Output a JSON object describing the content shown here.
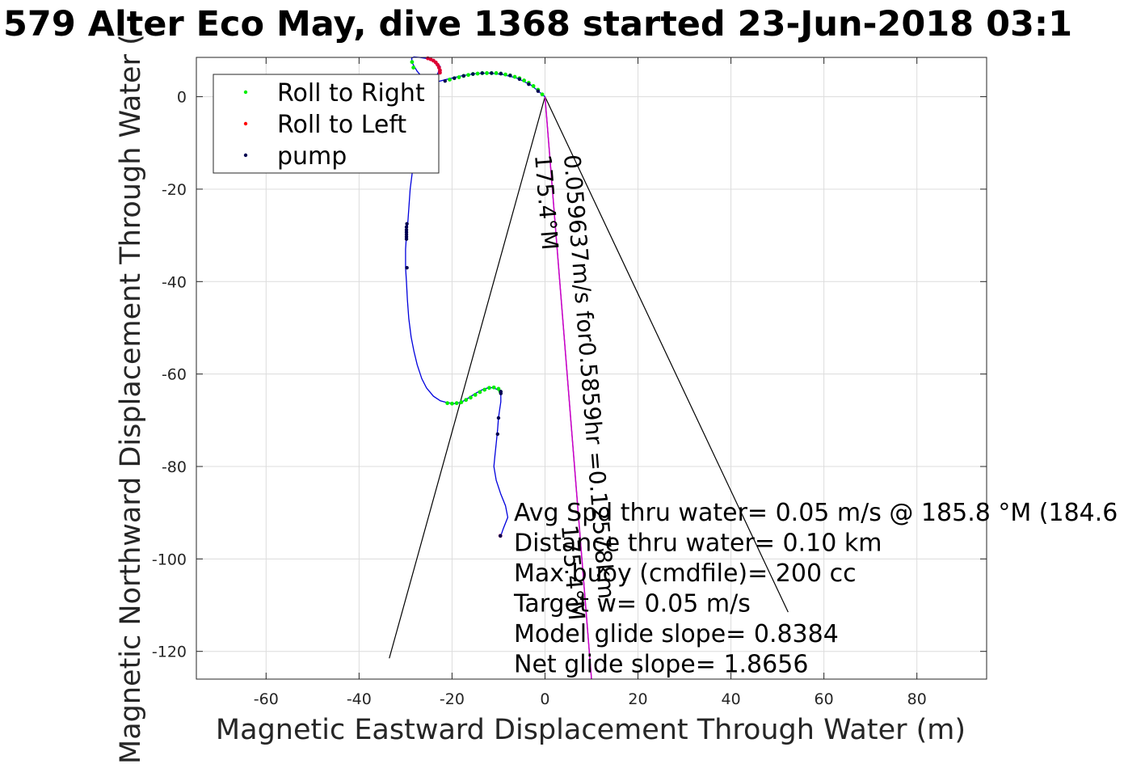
{
  "chart_data": {
    "type": "line",
    "title": "579 Alter Eco May, dive 1368 started 23-Jun-2018 03:1",
    "xlabel": "Magnetic Eastward Displacement Through Water (m)",
    "ylabel": "Magnetic Northward Displacement Through Water (",
    "xlim": [
      -75,
      95
    ],
    "ylim": [
      -126,
      8.5
    ],
    "xticks": [
      -60,
      -40,
      -20,
      0,
      20,
      40,
      60,
      80
    ],
    "yticks": [
      0,
      -20,
      -40,
      -60,
      -80,
      -100,
      -120
    ],
    "grid": true,
    "legend": {
      "position": "top-left",
      "entries": [
        {
          "label": "Roll to Right",
          "color": "#00ee00"
        },
        {
          "label": "Roll to Left",
          "color": "#ff0000"
        },
        {
          "label": "pump",
          "color": "#000050"
        }
      ]
    },
    "series": [
      {
        "name": "track",
        "color": "#0000dd",
        "x": [
          0,
          -3,
          -6,
          -9,
          -12,
          -15,
          -18,
          -21,
          -24,
          -26,
          -27.5,
          -28.5,
          -28.7,
          -28.2,
          -27,
          -25,
          -23.5,
          -22.5,
          -23,
          -24,
          -25.5,
          -27,
          -28,
          -29,
          -29.5,
          -29.8,
          -30,
          -30,
          -29.8,
          -29.6,
          -29.3,
          -28.8,
          -28.2,
          -27.5,
          -26.5,
          -25.5,
          -24,
          -22.5,
          -21,
          -19.5,
          -18,
          -16.5,
          -15,
          -13.5,
          -12,
          -11,
          -10,
          -9.5,
          -9.5,
          -9.8,
          -10,
          -10.2,
          -10.5,
          -10.8,
          -11,
          -10.5,
          -9.5,
          -8.5,
          -8,
          -9,
          -9.5
        ],
        "y": [
          0,
          2.5,
          4,
          4.8,
          5.1,
          5,
          4.5,
          3.8,
          3,
          3.8,
          5.5,
          7.2,
          8.3,
          8.6,
          8.5,
          8.2,
          7.5,
          6.5,
          5.2,
          3.2,
          0,
          -5,
          -12,
          -20,
          -27,
          -30,
          -33,
          -37,
          -40,
          -44,
          -48,
          -52,
          -55,
          -58,
          -61,
          -63,
          -64.8,
          -65.8,
          -66.2,
          -66.4,
          -66.1,
          -65.2,
          -64.2,
          -63.4,
          -62.9,
          -63,
          -63.5,
          -64.5,
          -66,
          -68,
          -69.5,
          -72,
          -75,
          -78,
          -80,
          -83,
          -86,
          -88.5,
          -91,
          -93.5,
          -95
        ]
      },
      {
        "name": "Roll to Right",
        "color": "#00ee00",
        "x": [
          -0.6,
          -1.5,
          -2.5,
          -3.5,
          -4.5,
          -5.5,
          -6.5,
          -7.5,
          -8.5,
          -9.5,
          -10.5,
          -11.5,
          -12.5,
          -13.5,
          -14.5,
          -15.5,
          -16.5,
          -17.5,
          -18.5,
          -19.5,
          -20.5,
          -28.3,
          -28.6,
          -21,
          -20,
          -19,
          -18,
          -17,
          -16,
          -15,
          -14,
          -13,
          -12,
          -11,
          -10,
          -9.6
        ],
        "y": [
          0.5,
          1.5,
          2.3,
          3,
          3.5,
          4,
          4.3,
          4.6,
          4.8,
          5,
          5.1,
          5.1,
          5.1,
          5.1,
          5,
          4.9,
          4.7,
          4.5,
          4.2,
          4,
          3.7,
          6.3,
          7.5,
          -66.3,
          -66.4,
          -66.3,
          -66.1,
          -65.6,
          -65.1,
          -64.5,
          -63.9,
          -63.4,
          -63,
          -62.9,
          -63.2,
          -63.8
        ]
      },
      {
        "name": "Roll to Left",
        "color": "#dd0033",
        "x": [
          -25.2,
          -24.6,
          -24,
          -23.5,
          -23.1,
          -22.8,
          -22.6,
          -22.6,
          -9.6
        ],
        "y": [
          8.3,
          8.1,
          7.8,
          7.4,
          6.9,
          6.3,
          5.7,
          5.2,
          -95
        ]
      },
      {
        "name": "pump",
        "color": "#000050",
        "x": [
          -1.5,
          -3.5,
          -5.5,
          -7.5,
          -9.5,
          -11.5,
          -13.5,
          -15.5,
          -17.5,
          -19.5,
          -21.5,
          -29.7,
          -29.8,
          -29.8,
          -29.8,
          -29.8,
          -29.8,
          -29.8,
          -29.7,
          -9.5,
          -9.5,
          -10,
          -10.2,
          -9.6
        ],
        "y": [
          1.2,
          2.7,
          3.8,
          4.6,
          5,
          5.1,
          5.1,
          4.9,
          4.5,
          4,
          3.4,
          -27.5,
          -28.2,
          -28.8,
          -29.3,
          -29.8,
          -30.3,
          -30.8,
          -37,
          -63.8,
          -64.2,
          -69.5,
          -73,
          -95
        ]
      }
    ],
    "cone_lines": [
      {
        "x": [
          0,
          -33.5
        ],
        "y": [
          0,
          -121.5
        ],
        "color": "#000000"
      },
      {
        "x": [
          0,
          52.3
        ],
        "y": [
          0,
          -111.5
        ],
        "color": "#000000"
      },
      {
        "x": [
          0,
          10
        ],
        "y": [
          0,
          -126
        ],
        "color": "#000000"
      },
      {
        "x": [
          0,
          10
        ],
        "y": [
          0,
          -126
        ],
        "color": "#cc00cc"
      }
    ],
    "annotations": {
      "heading_label": "175.4°M",
      "vector_label": "0.059637m/s for0.5859hr =0.12578km",
      "heading_label_lower": "175.4°M",
      "stats": [
        "Avg Spd thru water=  0.05 m/s @ 185.8 °M (184.6",
        "Distance thru water=  0.10 km",
        "Max buoy (cmdfile)= 200 cc",
        "Target w= 0.05 m/s",
        "Model glide slope= 0.8384",
        "Net glide slope= 1.8656"
      ]
    }
  }
}
